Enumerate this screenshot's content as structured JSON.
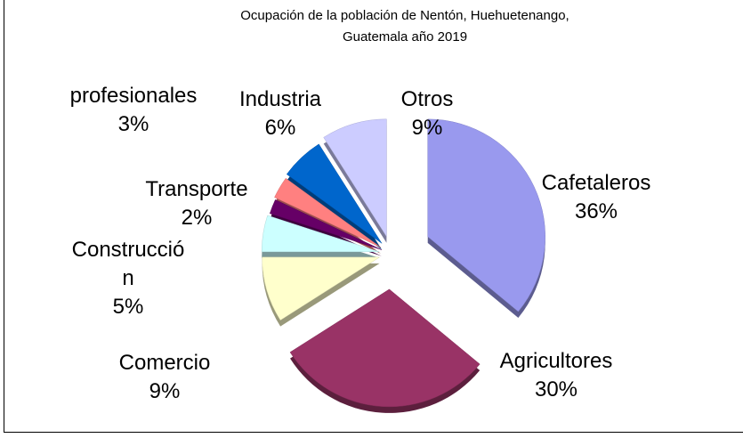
{
  "chart_data": {
    "type": "pie",
    "title": "Ocupación de la población de Nentón, Huehuetenango, Guatemala año 2019",
    "categories": [
      "Cafetaleros",
      "Agricultores",
      "Comercio",
      "Construcción",
      "Transporte",
      "profesionales",
      "Industria",
      "Otros"
    ],
    "values": [
      36,
      30,
      9,
      5,
      2,
      3,
      6,
      9
    ],
    "value_labels": [
      "36%",
      "30%",
      "9%",
      "5%",
      "2%",
      "3%",
      "6%",
      "9%"
    ],
    "colors": [
      "#9999ee",
      "#993366",
      "#ffffcc",
      "#ccffff",
      "#660066",
      "#ff8080",
      "#0066cc",
      "#ccccff"
    ]
  }
}
